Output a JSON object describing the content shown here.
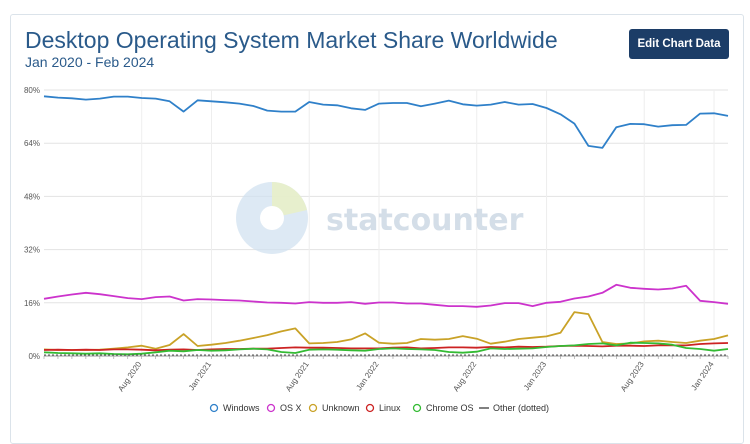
{
  "header": {
    "title": "Desktop Operating System Market Share Worldwide",
    "subtitle": "Jan 2020 - Feb 2024",
    "edit_button_label": "Edit Chart Data"
  },
  "watermark_text": "statcounter",
  "chart_data": {
    "type": "line",
    "yticks": [
      "0%",
      "16%",
      "32%",
      "48%",
      "64%",
      "80%"
    ],
    "ylim": [
      0,
      80
    ],
    "x_tick_labels": [
      "Aug 2020",
      "Jan 2021",
      "Aug 2021",
      "Jan 2022",
      "Aug 2022",
      "Jan 2023",
      "Aug 2023",
      "Jan 2024"
    ],
    "x_tick_index": [
      7,
      12,
      19,
      24,
      31,
      36,
      43,
      48
    ],
    "grid": true,
    "legend_position": "bottom",
    "series": [
      {
        "name": "Windows",
        "color": "#2f80c9",
        "values": [
          78.1,
          77.7,
          77.5,
          77.1,
          77.4,
          78.0,
          78.0,
          77.6,
          77.4,
          76.6,
          73.5,
          76.9,
          76.6,
          76.3,
          75.9,
          75.2,
          73.8,
          73.5,
          73.5,
          76.4,
          75.6,
          75.4,
          74.5,
          74.0,
          75.9,
          76.1,
          76.1,
          75.1,
          75.9,
          76.8,
          75.7,
          75.3,
          75.6,
          76.4,
          75.6,
          75.8,
          74.6,
          72.7,
          69.9,
          63.2,
          62.6,
          68.8,
          69.8,
          69.7,
          69.0,
          69.4,
          69.5,
          72.9,
          73.0,
          72.2
        ]
      },
      {
        "name": "OS X",
        "color": "#cc33cc",
        "values": [
          17.2,
          17.9,
          18.5,
          19.0,
          18.6,
          18.0,
          17.4,
          17.1,
          17.7,
          17.9,
          16.7,
          17.1,
          17.0,
          16.8,
          16.7,
          16.4,
          16.1,
          16.0,
          15.8,
          16.2,
          16.0,
          16.0,
          16.2,
          15.7,
          16.1,
          16.1,
          15.8,
          15.8,
          15.4,
          15.0,
          15.0,
          14.8,
          15.2,
          15.9,
          15.9,
          15.0,
          16.0,
          16.3,
          17.3,
          17.9,
          19.0,
          21.4,
          20.5,
          20.2,
          20.0,
          20.3,
          21.1,
          16.6,
          16.2,
          15.7
        ]
      },
      {
        "name": "Unknown",
        "color": "#c9a227",
        "values": [
          2.0,
          1.8,
          1.8,
          1.8,
          1.9,
          2.2,
          2.6,
          3.1,
          2.2,
          3.3,
          6.6,
          3.0,
          3.4,
          3.9,
          4.6,
          5.4,
          6.3,
          7.4,
          8.3,
          3.8,
          3.9,
          4.2,
          5.0,
          6.8,
          4.0,
          3.7,
          3.9,
          5.1,
          4.9,
          5.1,
          6.0,
          5.2,
          3.7,
          4.3,
          5.1,
          5.5,
          5.9,
          7.0,
          13.2,
          12.6,
          4.2,
          3.6,
          3.8,
          4.4,
          4.6,
          4.2,
          3.9,
          4.6,
          5.1,
          6.2
        ]
      },
      {
        "name": "Linux",
        "color": "#cc2222",
        "values": [
          1.8,
          1.9,
          1.8,
          1.9,
          1.8,
          2.0,
          2.0,
          1.9,
          1.7,
          1.9,
          2.0,
          1.8,
          2.0,
          2.1,
          2.1,
          2.2,
          2.2,
          2.4,
          2.6,
          2.5,
          2.5,
          2.4,
          2.3,
          2.3,
          2.3,
          2.5,
          2.6,
          2.3,
          2.4,
          2.6,
          2.6,
          2.5,
          2.7,
          2.6,
          2.8,
          2.7,
          2.8,
          3.0,
          3.1,
          3.0,
          2.9,
          3.1,
          3.1,
          3.0,
          3.2,
          3.2,
          3.2,
          3.6,
          3.8,
          3.9
        ]
      },
      {
        "name": "Chrome OS",
        "color": "#33bb33",
        "values": [
          1.1,
          0.9,
          0.8,
          0.7,
          0.8,
          0.6,
          0.5,
          0.7,
          1.1,
          1.6,
          1.4,
          1.8,
          1.6,
          1.7,
          2.0,
          2.2,
          2.0,
          1.2,
          0.9,
          1.9,
          2.0,
          1.9,
          1.7,
          1.6,
          2.1,
          2.3,
          2.1,
          2.0,
          1.8,
          1.2,
          1.0,
          1.3,
          2.3,
          2.1,
          2.2,
          2.3,
          2.7,
          3.0,
          3.2,
          3.6,
          3.8,
          3.2,
          4.0,
          3.9,
          3.8,
          3.4,
          2.4,
          2.1,
          1.6,
          2.1
        ]
      },
      {
        "name": "Other (dotted)",
        "color": "#555555",
        "dotted": true,
        "values": [
          0.3,
          0.3,
          0.3,
          0.3,
          0.3,
          0.3,
          0.3,
          0.3,
          0.3,
          0.3,
          0.3,
          0.3,
          0.3,
          0.3,
          0.3,
          0.3,
          0.3,
          0.3,
          0.3,
          0.3,
          0.3,
          0.3,
          0.3,
          0.3,
          0.3,
          0.3,
          0.3,
          0.3,
          0.3,
          0.3,
          0.3,
          0.3,
          0.3,
          0.3,
          0.3,
          0.3,
          0.3,
          0.3,
          0.3,
          0.3,
          0.3,
          0.3,
          0.3,
          0.3,
          0.3,
          0.3,
          0.3,
          0.3,
          0.3,
          0.3
        ]
      }
    ]
  }
}
